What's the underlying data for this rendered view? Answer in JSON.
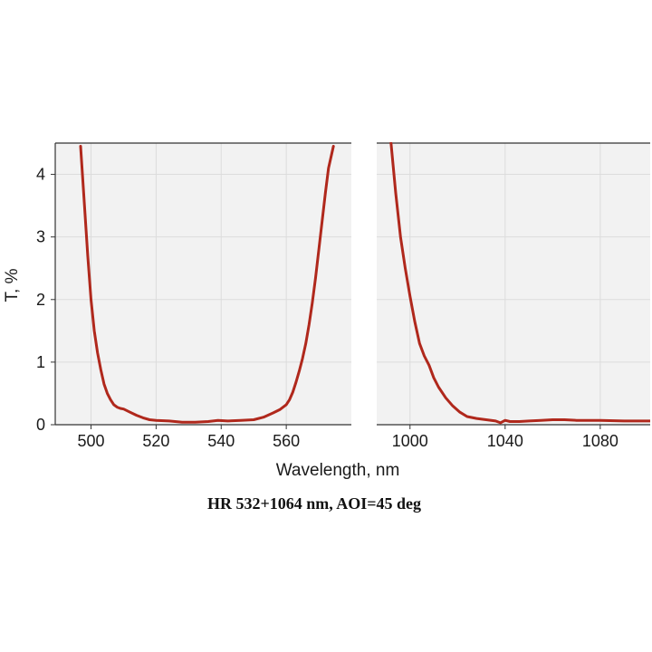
{
  "chart_data": {
    "type": "line",
    "title": "",
    "caption": "HR 532+1064 nm, AOI=45 deg",
    "xlabel": "Wavelength, nm",
    "ylabel": "T, %",
    "ylim": [
      0,
      4.5
    ],
    "yticks": [
      0,
      1,
      2,
      3,
      4
    ],
    "grid": true,
    "line_color": "#b0281c",
    "panel_bg": "#f2f2f2",
    "grid_color": "#dcdcdc",
    "panels": [
      {
        "name": "532",
        "xlim": [
          489,
          580
        ],
        "xticks": [
          500,
          520,
          540,
          560
        ],
        "series": [
          {
            "x": [
              496.8,
              498,
              499,
              500,
              501,
              502,
              503,
              504,
              505,
              506,
              507,
              508,
              509,
              510,
              512,
              514,
              516,
              518,
              520,
              524,
              528,
              532,
              536,
              539,
              542,
              546,
              550,
              553,
              556,
              558,
              560,
              561,
              562,
              563,
              564,
              565,
              566,
              567,
              568,
              569,
              570,
              571,
              572,
              573,
              574.5
            ],
            "y": [
              4.45,
              3.5,
              2.7,
              2.0,
              1.5,
              1.15,
              0.88,
              0.65,
              0.5,
              0.4,
              0.32,
              0.28,
              0.26,
              0.25,
              0.2,
              0.15,
              0.11,
              0.08,
              0.07,
              0.06,
              0.04,
              0.04,
              0.05,
              0.07,
              0.06,
              0.07,
              0.08,
              0.12,
              0.19,
              0.24,
              0.32,
              0.4,
              0.52,
              0.68,
              0.86,
              1.06,
              1.3,
              1.6,
              1.95,
              2.35,
              2.8,
              3.25,
              3.7,
              4.1,
              4.45
            ]
          }
        ]
      },
      {
        "name": "1064",
        "xlim": [
          986,
          1101
        ],
        "xticks": [
          1000,
          1040,
          1080
        ],
        "series": [
          {
            "x": [
              992,
              994,
              996,
              998,
              1000,
              1002,
              1004,
              1006,
              1008,
              1010,
              1012,
              1015,
              1018,
              1021,
              1024,
              1028,
              1032,
              1036,
              1038,
              1040,
              1042,
              1046,
              1050,
              1055,
              1060,
              1065,
              1070,
              1080,
              1090,
              1101
            ],
            "y": [
              4.5,
              3.7,
              3.0,
              2.5,
              2.05,
              1.65,
              1.3,
              1.1,
              0.95,
              0.75,
              0.6,
              0.43,
              0.3,
              0.2,
              0.13,
              0.1,
              0.08,
              0.06,
              0.03,
              0.07,
              0.05,
              0.05,
              0.06,
              0.07,
              0.08,
              0.08,
              0.07,
              0.07,
              0.06,
              0.06
            ]
          }
        ]
      }
    ]
  }
}
